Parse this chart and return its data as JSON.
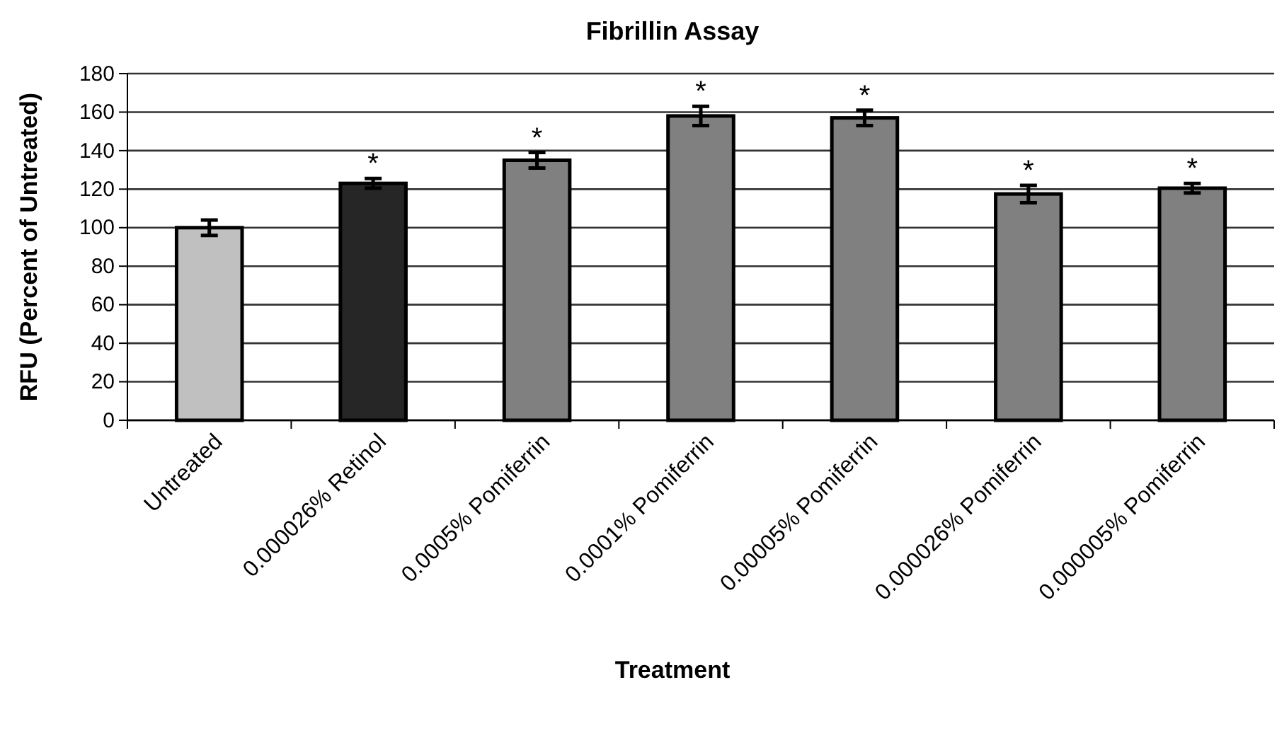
{
  "chart_data": {
    "type": "bar",
    "title": "Fibrillin Assay",
    "xlabel": "Treatment",
    "ylabel": "RFU (Percent of Untreated)",
    "categories": [
      "Untreated",
      "0.000026% Retinol",
      "0.0005% Pomiferrin",
      "0.0001% Pomiferrin",
      "0.00005% Pomiferrin",
      "0.000026% Pomiferrin",
      "0.000005% Pomiferrin"
    ],
    "values": [
      100,
      123,
      135,
      158,
      157,
      117.5,
      120.5
    ],
    "colors": [
      "#c0c0c0",
      "#262626",
      "#808080",
      "#808080",
      "#808080",
      "#808080",
      "#808080"
    ],
    "errors": [
      4,
      2.5,
      4,
      5,
      4,
      4.5,
      2.5
    ],
    "ylim": [
      0,
      180
    ],
    "yticks": [
      0,
      20,
      40,
      60,
      80,
      100,
      120,
      140,
      160,
      180
    ],
    "grid": "y",
    "annotations": [
      {
        "text": "*",
        "x": "0.000026% Retinol",
        "y": 125.5
      },
      {
        "text": "*",
        "x": "0.0005% Pomiferrin",
        "y": 139
      },
      {
        "text": "*",
        "x": "0.0001% Pomiferrin",
        "y": 163
      },
      {
        "text": "*",
        "x": "0.00005% Pomiferrin",
        "y": 161
      },
      {
        "text": "*",
        "x": "0.000026% Pomiferrin",
        "y": 122
      },
      {
        "text": "*",
        "x": "0.000005% Pomiferrin",
        "y": 123
      }
    ]
  }
}
